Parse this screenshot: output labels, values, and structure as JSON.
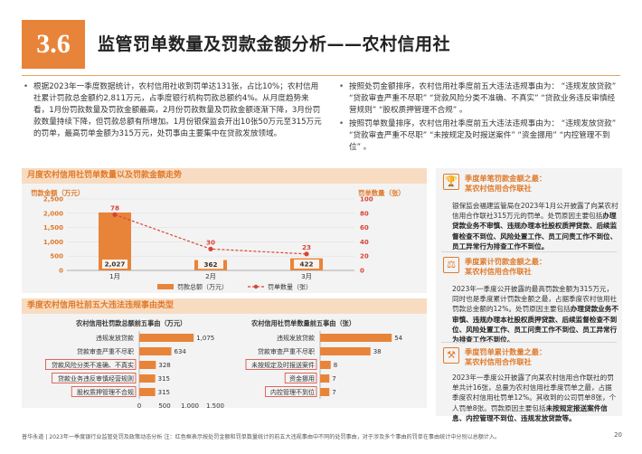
{
  "header": {
    "section_number": "3.6",
    "title": "监管罚单数量及罚款金额分析——农村信用社"
  },
  "bullets_left": [
    "根据2023年一季度数据统计，农村信用社收到罚单达131张，占比10%；农村信用社累计罚款总金额约2,811万元，占季度银行机构罚款总额约4%。从月度趋势来看，1月份罚款数量及罚款金额最高，2月份罚款数量及罚款金额逐渐下降，3月份罚款数量持续下降，但罚款总额有所增加。1月份银保监会开出10张50万元至315万元的罚单，最高罚单金额为315万元，处罚事由主要集中在贷款发放领域。"
  ],
  "bullets_right": [
    "按照处罚金额排序，农村信用社季度前五大违法违规事由为：  “违规发放贷款” “贷款审查严重不尽职” “贷款风险分类不准确、不真实” “贷款业务违反审慎经营规则” “股权质押管理不合规” 。",
    "按照罚单数量排序，农村信用社季度前五大违法违规事由为：  “违规发放贷款” “贷款审查严重不尽职” “未按规定及时报送案件” “资金挪用” “内控管理不到位” 。"
  ],
  "monthly_chart": {
    "panel_title": "月度农村信用社罚单数量以及罚款金额走势",
    "chart_data": {
      "type": "bar",
      "categories": [
        "1月",
        "2月",
        "3月"
      ],
      "series": [
        {
          "name": "罚款总额（万元）",
          "type": "bar",
          "values": [
            2027,
            362,
            422
          ],
          "axis": "left"
        },
        {
          "name": "罚单数量（张）",
          "type": "line",
          "values": [
            78,
            30,
            23
          ],
          "axis": "right"
        }
      ],
      "ylabel_left": "罚款金额（万元）",
      "ylabel_right": "罚单数量（张）",
      "ylim_left": [
        0,
        2500
      ],
      "yticks_left": [
        "0",
        "500",
        "1,000",
        "1,500",
        "2,000",
        "2,500"
      ],
      "ylim_right": [
        0,
        100
      ],
      "yticks_right": [
        "0",
        "20",
        "40",
        "60",
        "80",
        "100"
      ],
      "bar_labels": [
        "2,027",
        "362",
        "422"
      ],
      "line_labels": [
        "78",
        "30",
        "23"
      ],
      "legend": [
        "罚款总额（万元）",
        "罚单数量（张）"
      ],
      "legend_position": "bottom",
      "colors": {
        "bar": "#e8843a",
        "line": "#d94435"
      }
    }
  },
  "top5_panel": {
    "panel_title": "季度农村信用社前五大违法违规事由类型",
    "chart_data": [
      {
        "type": "bar",
        "orientation": "horizontal",
        "title": "农村信用社罚款总额前五事由（万元）",
        "categories": [
          "违规发放贷款",
          "贷款审查严重不尽职",
          "贷款风险分类不准确、不真实",
          "贷款业务违反审慎经营规则",
          "股权质押管理不合规"
        ],
        "values": [
          1075,
          634,
          328,
          315,
          315
        ],
        "value_labels": [
          "1,075",
          "634",
          "328",
          "315",
          "315"
        ],
        "xlim": [
          0,
          1500
        ],
        "xticks": [
          "0",
          "500",
          "1,000",
          "1,500"
        ],
        "highlighted": [
          "贷款风险分类不准确、不真实",
          "贷款业务违反审慎经营规则",
          "股权质押管理不合规"
        ],
        "color": "#e8843a"
      },
      {
        "type": "bar",
        "orientation": "horizontal",
        "title": "农村信用社罚单数量前五事由（张）",
        "categories": [
          "违规发放贷款",
          "贷款审查严重不尽职",
          "未按规定及时报送案件",
          "资金挪用",
          "内控管理不到位"
        ],
        "values": [
          54,
          38,
          8,
          7,
          7
        ],
        "value_labels": [
          "54",
          "38",
          "8",
          "7",
          "7"
        ],
        "xlim": [
          0,
          60
        ],
        "highlighted": [
          "未按规定及时报送案件",
          "资金挪用",
          "内控管理不到位"
        ],
        "color": "#e8843a"
      }
    ]
  },
  "side_panel": {
    "blocks": [
      {
        "icon": "trophy-icon",
        "title_line1": "季度单笔罚款金额之最：",
        "title_line2": "某农村信用合作联社",
        "body_plain": "银保监会福建监管局在2023年1月公开披露了向某农村信用合作联社315万元的罚单。处罚原因主要包括",
        "body_bold": "办理贷款业务不审慎、违规办理本社股权质押贷款、后续监督检查不到位、风险处置工作、员工问责工作不到位、员工异常行为排查工作不到位。",
        "body_tail": ""
      },
      {
        "icon": "scales-icon",
        "title_line1": "季度累计罚款金额之最：",
        "title_line2": "某农村信用合作联社",
        "body_plain": "2023年一季度公开披露的最高罚款金额为315万元，同时也是季度累计罚款金额之最，占据季度农村信用社罚款总金额的12%。处罚原因主要包括",
        "body_bold": "办理贷款业务不审慎、违规办理本社股权质押贷款、后续监督检查不到位、风险处置工作、员工问责工作不到位、员工异常行为排查工作不到位。",
        "body_tail": ""
      },
      {
        "icon": "gavel-icon",
        "title_line1": "季度罚单累计数量之最：",
        "title_line2": "某农村信用合作联社",
        "body_plain": "2023年一季度公开披露了向某农村信用合作联社的罚单共计16张，总量为农村信用社季度罚单之最，占据季度农村信用社罚单12%。其收到的公司罚单8张，个人罚单8张。罚款原因主要包括",
        "body_bold": "未按规定报送案件信息、内控管理不到位、违规发放贷款等。",
        "body_tail": ""
      }
    ]
  },
  "footer": {
    "text": "普华永道 | 2023年一季度银行业监管处罚及政策动态分析    注：红色框表示按处罚金额和罚单数量统计的前五大违规事由中不同的处罚事由，对于涉及多个事由的罚单在事由统计中分别以总额计入。",
    "page_number": "20"
  }
}
